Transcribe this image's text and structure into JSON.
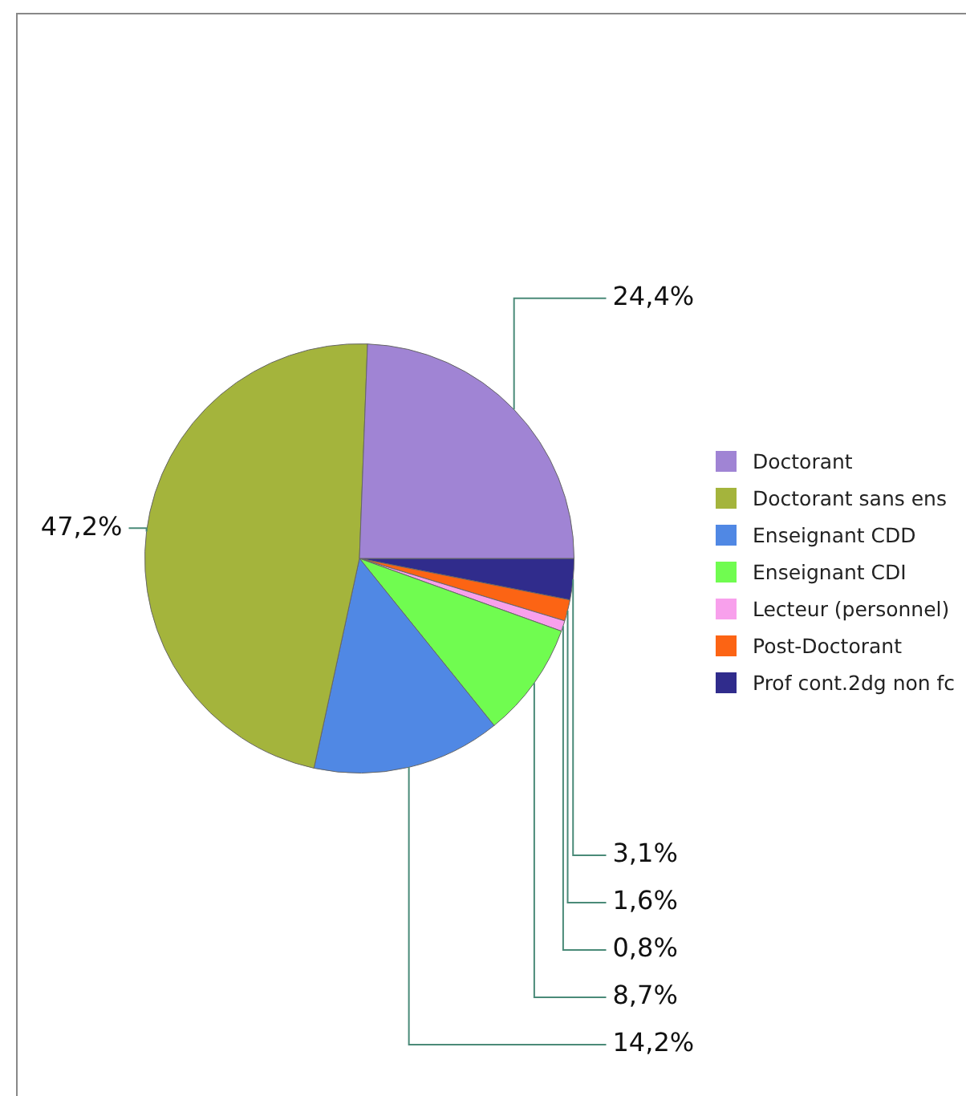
{
  "chart_data": {
    "type": "pie",
    "categories": [
      "Doctorant",
      "Doctorant sans ens",
      "Enseignant CDD",
      "Enseignant CDI",
      "Lecteur (personnel)",
      "Post-Doctorant",
      "Prof cont.2dg non fc"
    ],
    "values": [
      24.4,
      47.2,
      14.2,
      8.7,
      0.8,
      1.6,
      3.1
    ],
    "colors": [
      "#a084d4",
      "#a4b43c",
      "#5088e4",
      "#70fc50",
      "#f8a0ec",
      "#fc6414",
      "#302c8c"
    ],
    "value_labels": [
      "24,4%",
      "47,2%",
      "14,2%",
      "8,7%",
      "0,8%",
      "1,6%",
      "3,1%"
    ],
    "legend": "right"
  }
}
